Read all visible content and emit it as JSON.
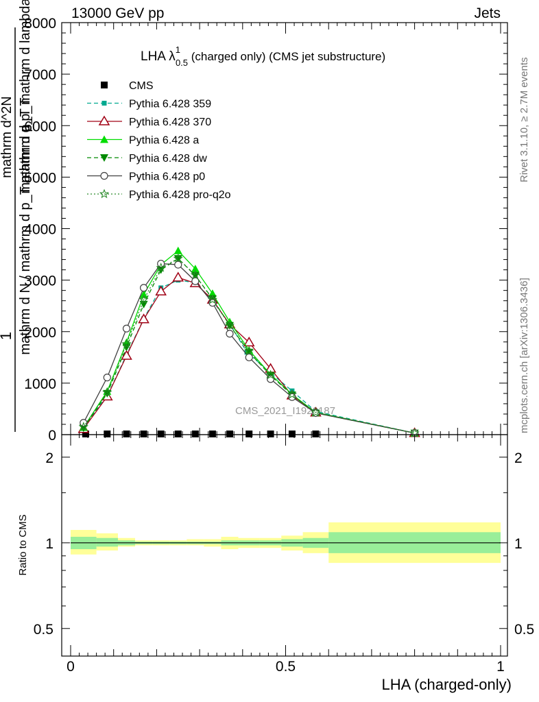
{
  "header": {
    "process": "13000 GeV pp",
    "category": "Jets"
  },
  "side_labels": {
    "rivet": "Rivet 3.1.10, ≥ 2.7M events",
    "mcplots": "mcplots.cern.ch [arXiv:1306.3436]"
  },
  "chart_data": [
    {
      "type": "line",
      "title": "LHA λ¹₀.₅ (charged only) (CMS jet substructure)",
      "title_main": "LHA λ",
      "title_sup": "1",
      "title_sub": "0.5",
      "title_rest": " (charged only) (CMS jet substructure)",
      "watermark": "CMS_2021_I1920187",
      "ylabel_lines": [
        "1",
        "mathrm d N / mathrm d p_T mathrm d p_T",
        "mathrm d^2N",
        "mathrm d p_T mathrm d lambda"
      ],
      "xlim": [
        0,
        1
      ],
      "ylim": [
        0,
        8000
      ],
      "yticks": [
        0,
        1000,
        2000,
        3000,
        4000,
        5000,
        6000,
        7000,
        8000
      ],
      "ytick_labels": [
        "0",
        "1000",
        "2000",
        "3000",
        "4000",
        "5000",
        "6000",
        "7000",
        "8000"
      ],
      "legend_position": "top-left",
      "series": [
        {
          "name": "CMS",
          "color": "#000000",
          "marker": "square",
          "x": [
            0.035,
            0.085,
            0.13,
            0.17,
            0.21,
            0.25,
            0.29,
            0.33,
            0.37,
            0.415,
            0.465,
            0.515,
            0.57
          ],
          "y": [
            0,
            0,
            0,
            0,
            0,
            0,
            0,
            0,
            0,
            0,
            0,
            0,
            0
          ]
        },
        {
          "name": "Pythia 6.428 359",
          "color": "#00a98f",
          "marker": "square-small",
          "dash": "dashed",
          "x": [
            0.03,
            0.085,
            0.13,
            0.17,
            0.21,
            0.25,
            0.29,
            0.33,
            0.37,
            0.41,
            0.465,
            0.515,
            0.57,
            0.8
          ],
          "y": [
            150,
            750,
            1550,
            2250,
            2850,
            3000,
            2950,
            2600,
            2150,
            1600,
            1200,
            850,
            450,
            30
          ]
        },
        {
          "name": "Pythia 6.428 370",
          "color": "#a00014",
          "marker": "triangle-open",
          "dash": "solid",
          "x": [
            0.03,
            0.085,
            0.13,
            0.17,
            0.21,
            0.25,
            0.29,
            0.33,
            0.37,
            0.415,
            0.465,
            0.515,
            0.57,
            0.8
          ],
          "y": [
            110,
            740,
            1530,
            2240,
            2780,
            3050,
            2940,
            2620,
            2140,
            1790,
            1280,
            760,
            430,
            30
          ]
        },
        {
          "name": "Pythia 6.428 a",
          "color": "#00dd00",
          "marker": "triangle",
          "dash": "solid",
          "x": [
            0.03,
            0.085,
            0.13,
            0.17,
            0.21,
            0.25,
            0.29,
            0.33,
            0.37,
            0.415,
            0.465,
            0.515,
            0.57,
            0.8
          ],
          "y": [
            140,
            840,
            1790,
            2720,
            3300,
            3570,
            3220,
            2740,
            2190,
            1640,
            1170,
            780,
            430,
            30
          ]
        },
        {
          "name": "Pythia 6.428 dw",
          "color": "#008a00",
          "marker": "triangle-down",
          "dash": "dashed",
          "x": [
            0.03,
            0.085,
            0.13,
            0.17,
            0.21,
            0.25,
            0.29,
            0.33,
            0.37,
            0.415,
            0.465,
            0.515,
            0.57,
            0.8
          ],
          "y": [
            130,
            800,
            1700,
            2530,
            3200,
            3420,
            3090,
            2640,
            2120,
            1600,
            1150,
            770,
            420,
            30
          ]
        },
        {
          "name": "Pythia 6.428 p0",
          "color": "#404040",
          "marker": "circle-open",
          "dash": "solid",
          "x": [
            0.03,
            0.085,
            0.13,
            0.17,
            0.21,
            0.25,
            0.29,
            0.33,
            0.37,
            0.415,
            0.465,
            0.515,
            0.57,
            0.8
          ],
          "y": [
            230,
            1110,
            2060,
            2850,
            3320,
            3300,
            2980,
            2560,
            1960,
            1500,
            1080,
            730,
            420,
            30
          ]
        },
        {
          "name": "Pythia 6.428 pro-q2o",
          "color": "#2a8a2a",
          "marker": "star",
          "dash": "dotted",
          "x": [
            0.03,
            0.085,
            0.13,
            0.17,
            0.21,
            0.25,
            0.29,
            0.33,
            0.37,
            0.415,
            0.465,
            0.515,
            0.57,
            0.8
          ],
          "y": [
            150,
            820,
            1760,
            2620,
            3240,
            3420,
            3100,
            2620,
            2120,
            1620,
            1160,
            780,
            430,
            30
          ]
        }
      ]
    },
    {
      "type": "area",
      "ylabel": "Ratio to CMS",
      "xlabel": "LHA (charged-only)",
      "xlim": [
        0,
        1
      ],
      "ylim": [
        0.4,
        2.4
      ],
      "log_y": true,
      "xticks": [
        0,
        0.5,
        1
      ],
      "xtick_labels": [
        "0",
        "0.5",
        "1"
      ],
      "yticks": [
        0.5,
        1,
        2
      ],
      "ytick_labels": [
        "0.5",
        "1",
        "2"
      ],
      "band_colors": {
        "inner": "#99ee99",
        "outer": "#ffff99"
      },
      "bins": [
        {
          "x0": 0.0,
          "x1": 0.06,
          "inner": [
            0.95,
            1.05
          ],
          "outer": [
            0.91,
            1.11
          ]
        },
        {
          "x0": 0.06,
          "x1": 0.11,
          "inner": [
            0.97,
            1.04
          ],
          "outer": [
            0.94,
            1.08
          ]
        },
        {
          "x0": 0.11,
          "x1": 0.15,
          "inner": [
            0.98,
            1.02
          ],
          "outer": [
            0.97,
            1.04
          ]
        },
        {
          "x0": 0.15,
          "x1": 0.19,
          "inner": [
            0.99,
            1.01
          ],
          "outer": [
            0.98,
            1.02
          ]
        },
        {
          "x0": 0.19,
          "x1": 0.23,
          "inner": [
            0.99,
            1.01
          ],
          "outer": [
            0.98,
            1.02
          ]
        },
        {
          "x0": 0.23,
          "x1": 0.27,
          "inner": [
            0.99,
            1.01
          ],
          "outer": [
            0.98,
            1.02
          ]
        },
        {
          "x0": 0.27,
          "x1": 0.31,
          "inner": [
            0.99,
            1.01
          ],
          "outer": [
            0.98,
            1.03
          ]
        },
        {
          "x0": 0.31,
          "x1": 0.35,
          "inner": [
            0.99,
            1.01
          ],
          "outer": [
            0.97,
            1.03
          ]
        },
        {
          "x0": 0.35,
          "x1": 0.39,
          "inner": [
            0.98,
            1.02
          ],
          "outer": [
            0.95,
            1.05
          ]
        },
        {
          "x0": 0.39,
          "x1": 0.44,
          "inner": [
            0.98,
            1.02
          ],
          "outer": [
            0.96,
            1.04
          ]
        },
        {
          "x0": 0.44,
          "x1": 0.49,
          "inner": [
            0.98,
            1.02
          ],
          "outer": [
            0.96,
            1.04
          ]
        },
        {
          "x0": 0.49,
          "x1": 0.54,
          "inner": [
            0.97,
            1.03
          ],
          "outer": [
            0.94,
            1.06
          ]
        },
        {
          "x0": 0.54,
          "x1": 0.6,
          "inner": [
            0.96,
            1.04
          ],
          "outer": [
            0.92,
            1.09
          ]
        },
        {
          "x0": 0.6,
          "x1": 1.0,
          "inner": [
            0.92,
            1.09
          ],
          "outer": [
            0.85,
            1.18
          ]
        }
      ]
    }
  ]
}
